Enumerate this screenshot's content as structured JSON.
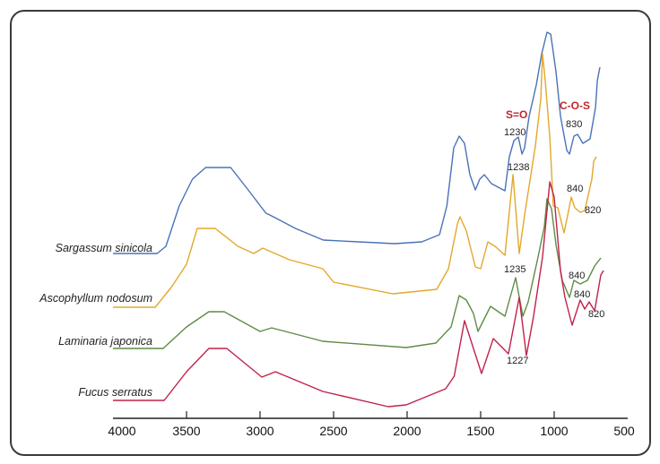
{
  "chart_data": {
    "type": "line",
    "title": "",
    "xlabel": "",
    "ylabel": "",
    "xlim": [
      4000,
      500
    ],
    "x_ticks": [
      4000,
      3500,
      3000,
      2500,
      2000,
      1500,
      1000,
      500
    ],
    "x_tick_labels": [
      "4000",
      "3500",
      "3000",
      "2500",
      "2000",
      "1500",
      "1000",
      "500"
    ],
    "y_units": "absorbance (offset, a.u.)",
    "grid": false,
    "legend": "inline-left",
    "series": [
      {
        "name": "Sargassum sinicola",
        "color": "#4a72b8",
        "points": [
          [
            4000,
            1.97
          ],
          [
            3700,
            1.97
          ],
          [
            3640,
            2.05
          ],
          [
            3550,
            2.5
          ],
          [
            3460,
            2.8
          ],
          [
            3370,
            2.93
          ],
          [
            3200,
            2.93
          ],
          [
            3090,
            2.7
          ],
          [
            2960,
            2.42
          ],
          [
            2910,
            2.38
          ],
          [
            2760,
            2.25
          ],
          [
            2570,
            2.12
          ],
          [
            2330,
            2.1
          ],
          [
            2085,
            2.08
          ],
          [
            1900,
            2.1
          ],
          [
            1780,
            2.18
          ],
          [
            1730,
            2.5
          ],
          [
            1683,
            3.15
          ],
          [
            1646,
            3.28
          ],
          [
            1610,
            3.2
          ],
          [
            1573,
            2.85
          ],
          [
            1536,
            2.68
          ],
          [
            1506,
            2.8
          ],
          [
            1475,
            2.85
          ],
          [
            1427,
            2.75
          ],
          [
            1335,
            2.67
          ],
          [
            1305,
            3.05
          ],
          [
            1274,
            3.23
          ],
          [
            1244,
            3.27
          ],
          [
            1219,
            3.08
          ],
          [
            1201,
            3.15
          ],
          [
            1171,
            3.5
          ],
          [
            1122,
            3.85
          ],
          [
            1085,
            4.2
          ],
          [
            1049,
            4.44
          ],
          [
            1024,
            4.42
          ],
          [
            988,
            4.0
          ],
          [
            957,
            3.5
          ],
          [
            914,
            3.12
          ],
          [
            896,
            3.08
          ],
          [
            866,
            3.28
          ],
          [
            841,
            3.3
          ],
          [
            805,
            3.2
          ],
          [
            756,
            3.25
          ],
          [
            719,
            3.6
          ],
          [
            707,
            3.9
          ],
          [
            689,
            4.05
          ]
        ]
      },
      {
        "name": "Ascophyllum nodosum",
        "color": "#e3a82b",
        "points": [
          [
            4000,
            1.37
          ],
          [
            3713,
            1.37
          ],
          [
            3600,
            1.6
          ],
          [
            3500,
            1.85
          ],
          [
            3427,
            2.25
          ],
          [
            3305,
            2.25
          ],
          [
            3150,
            2.05
          ],
          [
            3043,
            1.97
          ],
          [
            2982,
            2.03
          ],
          [
            2800,
            1.9
          ],
          [
            2573,
            1.8
          ],
          [
            2500,
            1.65
          ],
          [
            2097,
            1.52
          ],
          [
            1799,
            1.57
          ],
          [
            1719,
            1.8
          ],
          [
            1658,
            2.3
          ],
          [
            1640,
            2.38
          ],
          [
            1597,
            2.22
          ],
          [
            1536,
            1.82
          ],
          [
            1500,
            1.8
          ],
          [
            1451,
            2.1
          ],
          [
            1402,
            2.05
          ],
          [
            1335,
            1.95
          ],
          [
            1280,
            2.85
          ],
          [
            1238,
            1.97
          ],
          [
            1201,
            2.4
          ],
          [
            1128,
            3.17
          ],
          [
            1091,
            3.7
          ],
          [
            1079,
            4.2
          ],
          [
            1061,
            3.9
          ],
          [
            1030,
            3.27
          ],
          [
            1006,
            2.5
          ],
          [
            975,
            2.48
          ],
          [
            933,
            2.2
          ],
          [
            902,
            2.45
          ],
          [
            884,
            2.6
          ],
          [
            860,
            2.48
          ],
          [
            823,
            2.43
          ],
          [
            792,
            2.45
          ],
          [
            744,
            2.8
          ],
          [
            731,
            3.0
          ],
          [
            713,
            3.05
          ]
        ]
      },
      {
        "name": "Laminaria japonica",
        "color": "#5f8c45",
        "points": [
          [
            4000,
            0.91
          ],
          [
            3659,
            0.91
          ],
          [
            3500,
            1.15
          ],
          [
            3348,
            1.32
          ],
          [
            3244,
            1.32
          ],
          [
            3000,
            1.1
          ],
          [
            2921,
            1.14
          ],
          [
            2573,
            0.99
          ],
          [
            2006,
            0.92
          ],
          [
            1805,
            0.97
          ],
          [
            1701,
            1.15
          ],
          [
            1646,
            1.5
          ],
          [
            1597,
            1.45
          ],
          [
            1549,
            1.3
          ],
          [
            1518,
            1.1
          ],
          [
            1433,
            1.38
          ],
          [
            1335,
            1.27
          ],
          [
            1262,
            1.7
          ],
          [
            1213,
            1.27
          ],
          [
            1177,
            1.43
          ],
          [
            1110,
            1.93
          ],
          [
            1067,
            2.27
          ],
          [
            1049,
            2.58
          ],
          [
            1018,
            2.47
          ],
          [
            988,
            2.07
          ],
          [
            945,
            1.67
          ],
          [
            896,
            1.48
          ],
          [
            866,
            1.67
          ],
          [
            823,
            1.63
          ],
          [
            774,
            1.67
          ],
          [
            725,
            1.83
          ],
          [
            683,
            1.92
          ]
        ]
      },
      {
        "name": "Fucus serratus",
        "color": "#c0224a",
        "points": [
          [
            4000,
            0.33
          ],
          [
            3652,
            0.33
          ],
          [
            3500,
            0.65
          ],
          [
            3348,
            0.91
          ],
          [
            3226,
            0.91
          ],
          [
            2988,
            0.59
          ],
          [
            2896,
            0.65
          ],
          [
            2573,
            0.43
          ],
          [
            2128,
            0.26
          ],
          [
            2006,
            0.28
          ],
          [
            1738,
            0.46
          ],
          [
            1680,
            0.6
          ],
          [
            1610,
            1.22
          ],
          [
            1494,
            0.63
          ],
          [
            1414,
            1.02
          ],
          [
            1311,
            0.85
          ],
          [
            1238,
            1.48
          ],
          [
            1189,
            0.83
          ],
          [
            1140,
            1.27
          ],
          [
            1079,
            1.93
          ],
          [
            1030,
            2.77
          ],
          [
            1000,
            2.6
          ],
          [
            957,
            1.77
          ],
          [
            927,
            1.48
          ],
          [
            878,
            1.17
          ],
          [
            823,
            1.45
          ],
          [
            792,
            1.35
          ],
          [
            762,
            1.43
          ],
          [
            725,
            1.33
          ],
          [
            683,
            1.73
          ],
          [
            664,
            1.78
          ]
        ]
      }
    ],
    "annotations": [
      {
        "text": "S=O",
        "style": "group-label"
      },
      {
        "text": "C-O-S",
        "style": "group-label"
      },
      {
        "text": "1230",
        "series": "Sargassum sinicola"
      },
      {
        "text": "830",
        "series": "Sargassum sinicola"
      },
      {
        "text": "1238",
        "series": "Ascophyllum nodosum"
      },
      {
        "text": "840",
        "series": "Ascophyllum nodosum"
      },
      {
        "text": "820",
        "series": "Ascophyllum nodosum"
      },
      {
        "text": "1235",
        "series": "Laminaria japonica"
      },
      {
        "text": "840",
        "series": "Laminaria japonica"
      },
      {
        "text": "840",
        "series": "Fucus serratus"
      },
      {
        "text": "820",
        "series": "Fucus serratus"
      },
      {
        "text": "1227",
        "series": "Fucus serratus"
      }
    ]
  }
}
